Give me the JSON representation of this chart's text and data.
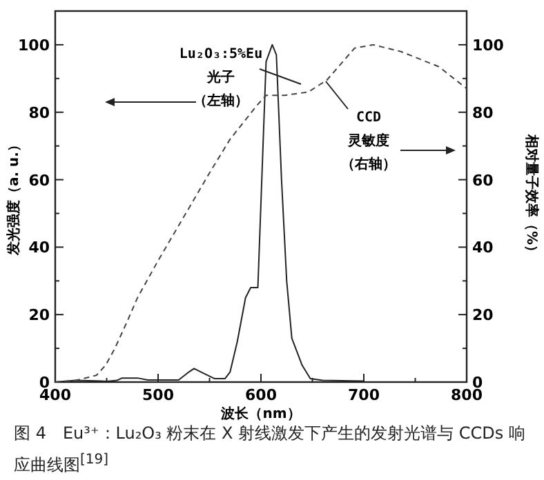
{
  "chart_data": {
    "type": "line",
    "xlabel": "波长（nm）",
    "ylabel": "发光强度（a. u.）",
    "y2label": "相对量子效率（%）",
    "xlim": [
      400,
      800
    ],
    "xticks": [
      400,
      {
        "value": 450,
        "label": null
      },
      500,
      {
        "value": 550,
        "label": null
      },
      600,
      {
        "value": 650,
        "label": null
      },
      700,
      {
        "value": 750,
        "label": null
      },
      800
    ],
    "ylim": [
      0,
      110
    ],
    "yticks": [
      0,
      {
        "value": 10,
        "label": null
      },
      20,
      {
        "value": 30,
        "label": null
      },
      40,
      {
        "value": 50,
        "label": null
      },
      60,
      {
        "value": 70,
        "label": null
      },
      80,
      {
        "value": 90,
        "label": null
      },
      100
    ],
    "y2lim": [
      0,
      110
    ],
    "y2ticks": [
      0,
      {
        "value": 10,
        "label": null
      },
      20,
      {
        "value": 30,
        "label": null
      },
      40,
      {
        "value": 50,
        "label": null
      },
      60,
      {
        "value": 70,
        "label": null
      },
      80,
      {
        "value": 90,
        "label": null
      },
      100
    ],
    "grid": false,
    "series": [
      {
        "color": "#222222",
        "line_style": "solid",
        "x": [
          400,
          420,
          445,
          450,
          460,
          465,
          480,
          490,
          520,
          530,
          535,
          545,
          555,
          565,
          570,
          577,
          585,
          590,
          597,
          602,
          605,
          611,
          615,
          620,
          625,
          630,
          640,
          648,
          660,
          700
        ],
        "values": [
          0,
          0.5,
          0.3,
          0.2,
          0.5,
          1.2,
          1.2,
          0.6,
          0.6,
          3,
          4,
          2.5,
          1,
          1,
          3,
          12,
          25,
          28,
          28,
          70,
          95,
          100,
          97,
          60,
          30,
          13,
          5,
          1,
          0.5,
          0.3
        ]
      },
      {
        "axis": "y2",
        "color": "#444444",
        "line_style": "dashed",
        "x": [
          400,
          420,
          440,
          449,
          458,
          470,
          480,
          500,
          525,
          550,
          570,
          596,
          605,
          623,
          646,
          664,
          691,
          709,
          736,
          773,
          800
        ],
        "values": [
          0,
          0.5,
          2,
          5,
          10,
          18,
          25,
          36,
          49,
          62,
          72,
          82,
          85,
          85,
          86,
          89.5,
          99,
          100,
          98,
          93.5,
          87
        ]
      }
    ],
    "annotations": [
      "Lu₂O₃:5%Eu",
      "光子",
      "（左轴）",
      "CCD",
      "灵敏度",
      "（右轴）",
      "图 4　Eu³⁺：Lu₂O₃ 粉末在 X 射线激发下产生的发射光谱与 CCDs 响应曲线图$^{[19]}$"
    ]
  }
}
